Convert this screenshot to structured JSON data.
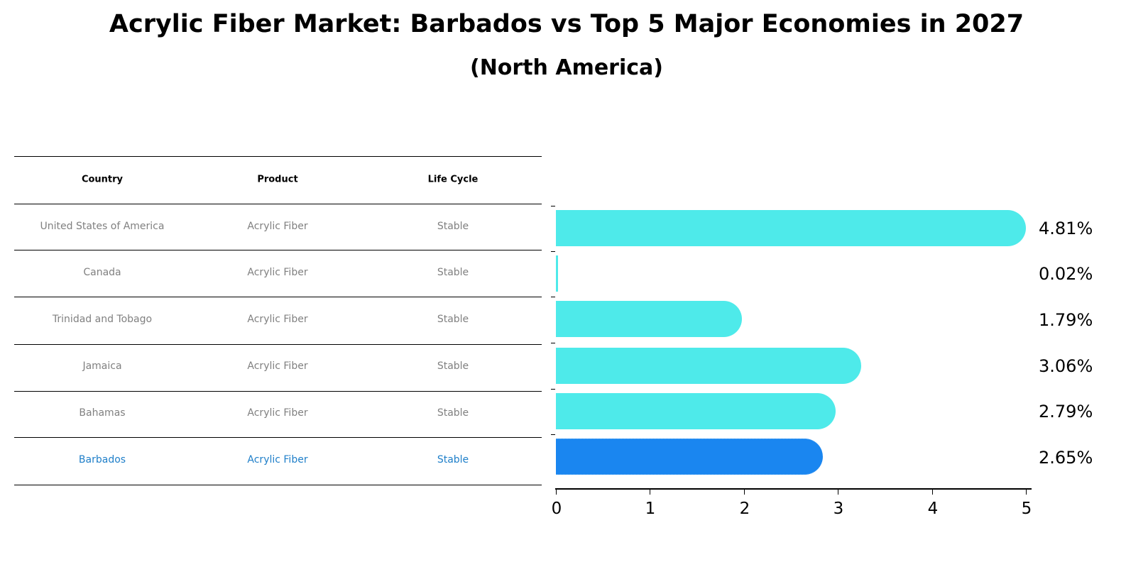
{
  "title": "Acrylic Fiber Market: Barbados vs Top 5 Major Economies in 2027",
  "subtitle": "(North America)",
  "table": {
    "headers": [
      "Country",
      "Product",
      "Life Cycle"
    ],
    "rows": [
      {
        "country": "United States of America",
        "product": "Acrylic Fiber",
        "life_cycle": "Stable",
        "highlight": false
      },
      {
        "country": "Canada",
        "product": "Acrylic Fiber",
        "life_cycle": "Stable",
        "highlight": false
      },
      {
        "country": "Trinidad and Tobago",
        "product": "Acrylic Fiber",
        "life_cycle": "Stable",
        "highlight": false
      },
      {
        "country": "Jamaica",
        "product": "Acrylic Fiber",
        "life_cycle": "Stable",
        "highlight": false
      },
      {
        "country": "Bahamas",
        "product": "Acrylic Fiber",
        "life_cycle": "Stable",
        "highlight": false
      },
      {
        "country": "Barbados",
        "product": "Acrylic Fiber",
        "life_cycle": "Stable",
        "highlight": true
      }
    ]
  },
  "colors": {
    "other_bar": "#4eeaea",
    "focus_bar": "#1a86f0",
    "focus_text": "#1f7fc9",
    "muted_text": "#808080"
  },
  "chart_data": {
    "type": "bar",
    "orientation": "horizontal",
    "title": "Acrylic Fiber Market: Barbados vs Top 5 Major Economies in 2027",
    "subtitle": "(North America)",
    "categories": [
      "United States of America",
      "Canada",
      "Trinidad and Tobago",
      "Jamaica",
      "Bahamas",
      "Barbados"
    ],
    "values": [
      4.81,
      0.02,
      1.79,
      3.06,
      2.79,
      2.65
    ],
    "value_labels": [
      "4.81%",
      "0.02%",
      "1.79%",
      "3.06%",
      "2.79%",
      "2.65%"
    ],
    "highlight": "Barbados",
    "xlabel": "",
    "ylabel": "",
    "xlim": [
      0,
      5
    ],
    "xticks": [
      "0",
      "1",
      "2",
      "3",
      "4",
      "5"
    ],
    "grid": false,
    "legend": null
  }
}
